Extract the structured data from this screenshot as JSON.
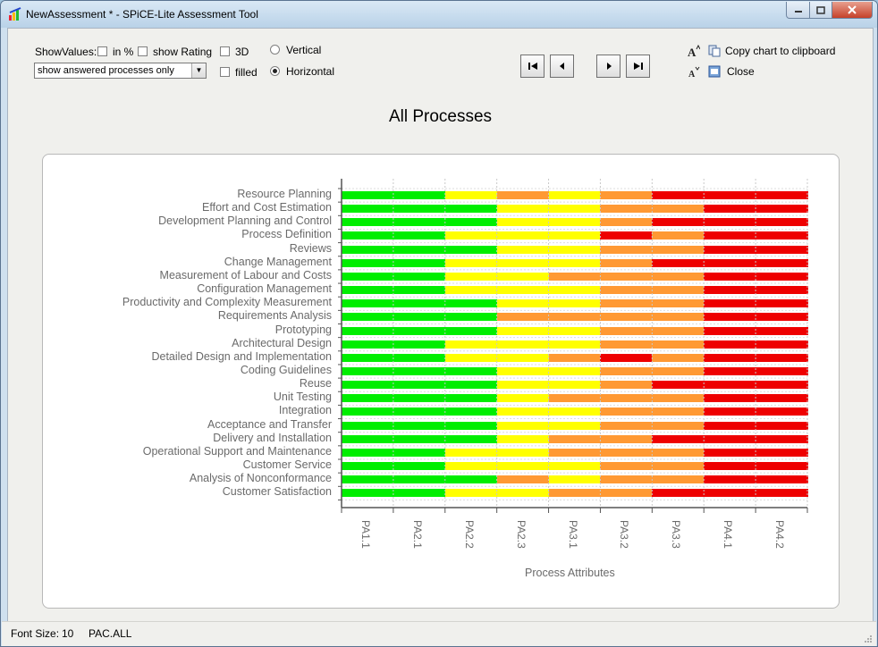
{
  "window": {
    "title": "NewAssessment * - SPiCE-Lite Assessment Tool",
    "controls": [
      "minimize",
      "maximize",
      "close"
    ]
  },
  "toolbar": {
    "show_values_label": "ShowValues:",
    "in_percent_label": "in %",
    "show_rating_label": "show Rating",
    "three_d_label": "3D",
    "filled_label": "filled",
    "vertical_label": "Vertical",
    "horizontal_label": "Horizontal",
    "orientation_selected": "Horizontal",
    "filter_select_value": "show answered processes only",
    "copy_chart_label": "Copy chart to clipboard",
    "close_label": "Close",
    "nav_icons": [
      "first-icon",
      "previous-icon",
      "next-icon",
      "last-icon"
    ]
  },
  "statusbar": {
    "font_size_label": "Font Size:",
    "font_size_value": "10",
    "context": "PAC.ALL"
  },
  "chart_data": {
    "type": "bar",
    "orientation": "horizontal",
    "title": "All Processes",
    "xlabel": "Process Attributes",
    "ylabel": "",
    "grid": true,
    "categories": [
      "PA1.1",
      "PA2.1",
      "PA2.2",
      "PA2.3",
      "PA3.1",
      "PA3.2",
      "PA3.3",
      "PA4.1",
      "PA4.2"
    ],
    "rating_colors": {
      "F": "#00ee00",
      "L": "#ffff00",
      "P": "#ff9933",
      "N": "#ee0000"
    },
    "rows": [
      {
        "name": "Resource Planning",
        "ratings": [
          "F",
          "F",
          "L",
          "P",
          "L",
          "P",
          "N",
          "N",
          "N"
        ]
      },
      {
        "name": "Effort and Cost Estimation",
        "ratings": [
          "F",
          "F",
          "F",
          "L",
          "L",
          "P",
          "P",
          "N",
          "N"
        ]
      },
      {
        "name": "Development Planning and Control",
        "ratings": [
          "F",
          "F",
          "F",
          "L",
          "L",
          "P",
          "N",
          "N",
          "N"
        ]
      },
      {
        "name": "Process Definition",
        "ratings": [
          "F",
          "F",
          "L",
          "L",
          "L",
          "N",
          "P",
          "N",
          "N"
        ]
      },
      {
        "name": "Reviews",
        "ratings": [
          "F",
          "F",
          "F",
          "L",
          "L",
          "P",
          "P",
          "N",
          "N"
        ]
      },
      {
        "name": "Change Management",
        "ratings": [
          "F",
          "F",
          "L",
          "L",
          "L",
          "P",
          "N",
          "N",
          "N"
        ]
      },
      {
        "name": "Measurement of Labour and Costs",
        "ratings": [
          "F",
          "F",
          "L",
          "L",
          "P",
          "P",
          "P",
          "N",
          "N"
        ]
      },
      {
        "name": "Configuration Management",
        "ratings": [
          "F",
          "F",
          "L",
          "L",
          "L",
          "P",
          "P",
          "N",
          "N"
        ]
      },
      {
        "name": "Productivity and Complexity Measurement",
        "ratings": [
          "F",
          "F",
          "F",
          "L",
          "L",
          "P",
          "P",
          "N",
          "N"
        ]
      },
      {
        "name": "Requirements Analysis",
        "ratings": [
          "F",
          "F",
          "F",
          "P",
          "P",
          "P",
          "P",
          "N",
          "N"
        ]
      },
      {
        "name": "Prototyping",
        "ratings": [
          "F",
          "F",
          "F",
          "L",
          "L",
          "P",
          "P",
          "N",
          "N"
        ]
      },
      {
        "name": "Architectural Design",
        "ratings": [
          "F",
          "F",
          "L",
          "L",
          "L",
          "P",
          "P",
          "N",
          "N"
        ]
      },
      {
        "name": "Detailed Design and Implementation",
        "ratings": [
          "F",
          "F",
          "L",
          "L",
          "P",
          "N",
          "P",
          "N",
          "N"
        ]
      },
      {
        "name": "Coding Guidelines",
        "ratings": [
          "F",
          "F",
          "F",
          "L",
          "L",
          "P",
          "P",
          "N",
          "N"
        ]
      },
      {
        "name": "Reuse",
        "ratings": [
          "F",
          "F",
          "F",
          "L",
          "L",
          "P",
          "N",
          "N",
          "N"
        ]
      },
      {
        "name": "Unit Testing",
        "ratings": [
          "F",
          "F",
          "F",
          "L",
          "P",
          "P",
          "P",
          "N",
          "N"
        ]
      },
      {
        "name": "Integration",
        "ratings": [
          "F",
          "F",
          "F",
          "L",
          "L",
          "P",
          "P",
          "N",
          "N"
        ]
      },
      {
        "name": "Acceptance and Transfer",
        "ratings": [
          "F",
          "F",
          "F",
          "L",
          "L",
          "P",
          "P",
          "N",
          "N"
        ]
      },
      {
        "name": "Delivery and Installation",
        "ratings": [
          "F",
          "F",
          "F",
          "L",
          "P",
          "P",
          "N",
          "N",
          "N"
        ]
      },
      {
        "name": "Operational Support and Maintenance",
        "ratings": [
          "F",
          "F",
          "L",
          "L",
          "P",
          "P",
          "P",
          "N",
          "N"
        ]
      },
      {
        "name": "Customer Service",
        "ratings": [
          "F",
          "F",
          "L",
          "L",
          "L",
          "P",
          "P",
          "N",
          "N"
        ]
      },
      {
        "name": "Analysis of Nonconformance",
        "ratings": [
          "F",
          "F",
          "F",
          "P",
          "L",
          "P",
          "P",
          "N",
          "N"
        ]
      },
      {
        "name": "Customer Satisfaction",
        "ratings": [
          "F",
          "F",
          "L",
          "L",
          "P",
          "P",
          "N",
          "N",
          "N"
        ]
      }
    ]
  }
}
